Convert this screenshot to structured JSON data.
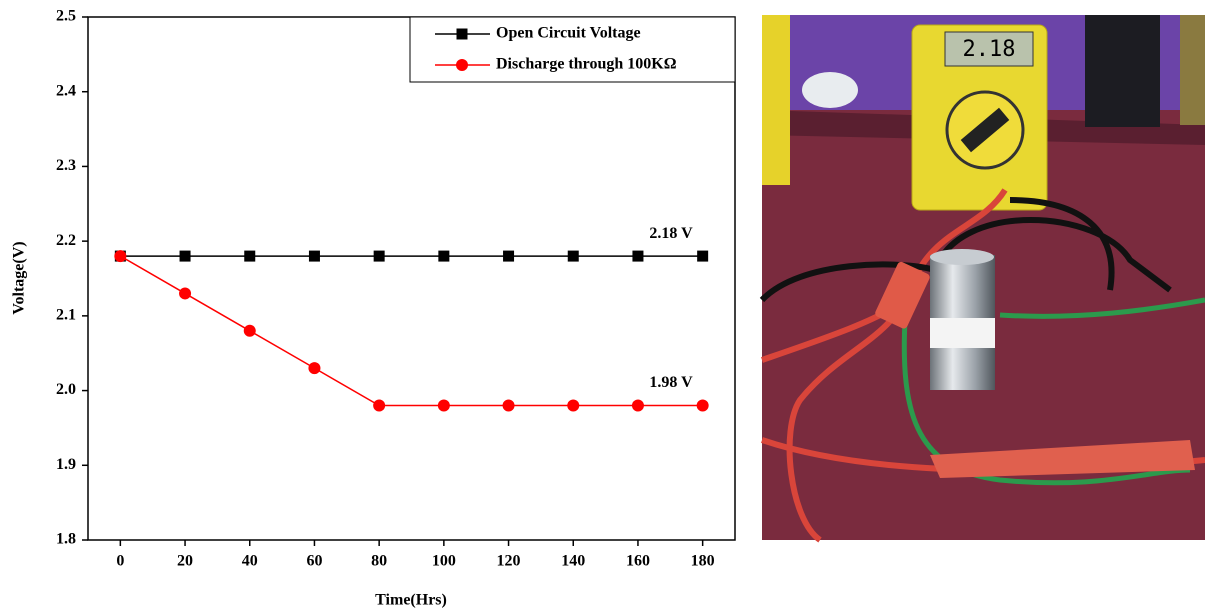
{
  "chart_data": {
    "type": "line",
    "x_label": "Time(Hrs)",
    "y_label": "Voltage(V)",
    "x": [
      0,
      20,
      40,
      60,
      80,
      100,
      120,
      140,
      160,
      180
    ],
    "series": [
      {
        "name": "Open Circuit Voltage",
        "color": "#000000",
        "marker": "square",
        "label": "2.18 V",
        "values": [
          2.18,
          2.18,
          2.18,
          2.18,
          2.18,
          2.18,
          2.18,
          2.18,
          2.18,
          2.18
        ]
      },
      {
        "name": "Discharge through 100KΩ",
        "color": "#ff0000",
        "marker": "circle",
        "label": "1.98 V",
        "values": [
          2.18,
          2.13,
          2.08,
          2.03,
          1.98,
          1.98,
          1.98,
          1.98,
          1.98,
          1.98
        ]
      }
    ],
    "xlim": [
      -10,
      190
    ],
    "xticks": [
      0,
      20,
      40,
      60,
      80,
      100,
      120,
      140,
      160,
      180
    ],
    "ylim": [
      1.8,
      2.5
    ],
    "yticks": [
      1.8,
      1.9,
      {
        "value": 2,
        "label": "2.0"
      },
      2.1,
      2.2,
      2.3,
      2.4,
      2.5
    ],
    "legend": "upper right"
  },
  "photo": {
    "meter_reading": "2.18"
  }
}
